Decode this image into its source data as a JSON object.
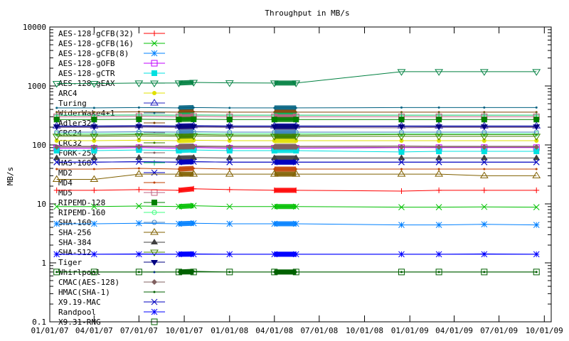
{
  "chart_data": {
    "type": "line",
    "title": "Throughput in MB/s",
    "xlabel": "",
    "ylabel": "MB/s",
    "yscale": "log",
    "ylim": [
      0.1,
      10000
    ],
    "xlim": [
      "2007-01-01",
      "2009-10-15"
    ],
    "grid": false,
    "legend_position": "top-left",
    "yticks": [
      "0.1",
      "1",
      "10",
      "100",
      "1000",
      "10000"
    ],
    "yticks_values": [
      0.1,
      1,
      10,
      100,
      1000,
      10000
    ],
    "xticks": [
      "01/01/07",
      "04/01/07",
      "07/01/07",
      "10/01/07",
      "01/01/08",
      "04/01/08",
      "07/01/08",
      "10/01/08",
      "01/01/09",
      "04/01/09",
      "07/01/09",
      "10/01/09"
    ],
    "xticks_dates": [
      "2007-01-01",
      "2007-04-01",
      "2007-07-01",
      "2007-10-01",
      "2008-01-01",
      "2008-04-01",
      "2008-07-01",
      "2008-10-01",
      "2009-01-01",
      "2009-04-01",
      "2009-07-01",
      "2009-10-01"
    ],
    "x": [
      "2007-01-15",
      "2007-04-01",
      "2007-07-01",
      "2007-09-20",
      "2007-10-20",
      "2008-01-01",
      "2008-04-01",
      "2008-05-15",
      "2008-12-15",
      "2009-03-01",
      "2009-06-01",
      "2009-09-15"
    ],
    "series": [
      {
        "name": "AES-128-gCFB(32)",
        "color": "#ff0000",
        "marker": "plus",
        "values": [
          17,
          17,
          17.5,
          17,
          18,
          17.5,
          17,
          17,
          16.5,
          17,
          17,
          17
        ]
      },
      {
        "name": "AES-128-gCFB(16)",
        "color": "#00c000",
        "marker": "cross",
        "values": [
          9,
          9,
          9.2,
          9,
          9.3,
          9,
          9,
          9,
          8.8,
          8.8,
          8.9,
          8.8
        ]
      },
      {
        "name": "AES-128-gCFB(8)",
        "color": "#0080ff",
        "marker": "star",
        "values": [
          4.6,
          4.6,
          4.7,
          4.6,
          4.7,
          4.6,
          4.6,
          4.6,
          4.4,
          4.4,
          4.5,
          4.4
        ]
      },
      {
        "name": "AES-128-gOFB",
        "color": "#c000ff",
        "marker": "box",
        "values": [
          88,
          88,
          90,
          88,
          90,
          88,
          88,
          88,
          90,
          90,
          90,
          90
        ]
      },
      {
        "name": "AES-128-gCTR",
        "color": "#00e0e0",
        "marker": "fbox",
        "values": [
          80,
          80,
          82,
          80,
          82,
          80,
          80,
          80,
          76,
          78,
          78,
          78
        ]
      },
      {
        "name": "AES-128-gEAX",
        "color": "#008040",
        "marker": "invtri",
        "values": [
          1100,
          1100,
          1120,
          1120,
          1150,
          1130,
          1120,
          1120,
          1750,
          1750,
          1750,
          1750
        ]
      },
      {
        "name": "ARC4",
        "color": "#e0e000",
        "marker": "fcircle",
        "values": [
          118,
          118,
          120,
          118,
          120,
          118,
          118,
          118,
          118,
          118,
          118,
          118
        ]
      },
      {
        "name": "Turing",
        "color": "#2020c0",
        "marker": "tri",
        "values": [
          210,
          210,
          212,
          210,
          212,
          210,
          210,
          210,
          210,
          210,
          210,
          210
        ]
      },
      {
        "name": "WiderWake4+1",
        "color": "#006080",
        "marker": "none",
        "values": [
          424,
          424,
          430,
          424,
          430,
          424,
          424,
          424,
          430,
          430,
          430,
          430
        ]
      },
      {
        "name": "Adler32",
        "color": "#804000",
        "marker": "none",
        "values": [
          360,
          360,
          365,
          360,
          365,
          360,
          360,
          360,
          360,
          360,
          360,
          360
        ]
      },
      {
        "name": "CRC24",
        "color": "#806080",
        "marker": "none",
        "values": [
          198,
          198,
          200,
          198,
          200,
          198,
          198,
          198,
          195,
          198,
          198,
          198
        ]
      },
      {
        "name": "CRC32",
        "color": "#408000",
        "marker": "none",
        "values": [
          147,
          147,
          150,
          147,
          150,
          147,
          147,
          147,
          150,
          150,
          150,
          150
        ]
      },
      {
        "name": "FORK-256",
        "color": "#806060",
        "marker": "none",
        "values": [
          95,
          95,
          96,
          95,
          96,
          95,
          95,
          95,
          96,
          95,
          95,
          95
        ]
      },
      {
        "name": "HAS-160",
        "color": "#00c060",
        "marker": "plus",
        "values": [
          320,
          320,
          322,
          320,
          322,
          320,
          320,
          320,
          320,
          320,
          320,
          320
        ]
      },
      {
        "name": "MD2",
        "color": "#0000c0",
        "marker": "cross",
        "values": [
          51,
          51,
          52,
          51,
          52,
          51,
          51,
          51,
          51,
          51,
          51,
          51
        ]
      },
      {
        "name": "MD4",
        "color": "#c04000",
        "marker": "none",
        "values": [
          39,
          39,
          40,
          39,
          40,
          39,
          39,
          39,
          39,
          39,
          39,
          39
        ]
      },
      {
        "name": "MD5",
        "color": "#c06080",
        "marker": "box",
        "values": [
          300,
          300,
          305,
          300,
          305,
          300,
          300,
          300,
          300,
          300,
          300,
          300
        ]
      },
      {
        "name": "RIPEMD-128",
        "color": "#008000",
        "marker": "fbox",
        "values": [
          270,
          270,
          272,
          270,
          272,
          270,
          270,
          270,
          270,
          270,
          270,
          270
        ]
      },
      {
        "name": "RIPEMD-160",
        "color": "#40ff80",
        "marker": "circle",
        "values": [
          155,
          155,
          157,
          155,
          157,
          155,
          155,
          155,
          155,
          155,
          155,
          155
        ]
      },
      {
        "name": "SHA-160",
        "color": "#4080c0",
        "marker": "circle",
        "values": [
          165,
          165,
          167,
          165,
          167,
          165,
          165,
          165,
          165,
          165,
          165,
          165
        ]
      },
      {
        "name": "SHA-256",
        "color": "#806000",
        "marker": "tri",
        "values": [
          26,
          26,
          32,
          32,
          32,
          32,
          32,
          32,
          32,
          32,
          30,
          30
        ]
      },
      {
        "name": "SHA-384",
        "color": "#404040",
        "marker": "ftri",
        "values": [
          60,
          60,
          61,
          60,
          61,
          60,
          60,
          60,
          60,
          60,
          60,
          60
        ]
      },
      {
        "name": "SHA-512",
        "color": "#408000",
        "marker": "invtri",
        "values": [
          140,
          140,
          142,
          140,
          142,
          140,
          140,
          140,
          140,
          140,
          140,
          140
        ]
      },
      {
        "name": "Tiger",
        "color": "#000080",
        "marker": "finvtri",
        "values": [
          205,
          205,
          207,
          205,
          207,
          205,
          205,
          205,
          205,
          205,
          205,
          205
        ]
      },
      {
        "name": "Whirlpool",
        "color": "#0000ff",
        "marker": "none",
        "values": [
          1.4,
          1.4,
          1.42,
          1.4,
          1.42,
          1.4,
          1.4,
          1.4,
          1.4,
          1.4,
          1.42,
          1.4
        ]
      },
      {
        "name": "CMAC(AES-128)",
        "color": "#806060",
        "marker": "diamond",
        "values": [
          92,
          92,
          93,
          92,
          93,
          92,
          92,
          92,
          92,
          92,
          92,
          92
        ]
      },
      {
        "name": "HMAC(SHA-1)",
        "color": "#006000",
        "marker": "none",
        "values": [
          0.7,
          0.7,
          0.7,
          0.7,
          0.72,
          0.7,
          0.7,
          0.7,
          0.7,
          0.7,
          0.7,
          0.7
        ]
      },
      {
        "name": "X9.19-MAC",
        "color": "#0000c0",
        "marker": "cross",
        "values": [
          51,
          51,
          52,
          51,
          52,
          51,
          51,
          51,
          51,
          51,
          51,
          51
        ]
      },
      {
        "name": "Randpool",
        "color": "#0000ff",
        "marker": "star",
        "values": [
          1.4,
          1.4,
          1.4,
          1.4,
          1.4,
          1.4,
          1.4,
          1.4,
          1.4,
          1.4,
          1.4,
          1.4
        ]
      },
      {
        "name": "X9.31-RNG",
        "color": "#006000",
        "marker": "box",
        "values": [
          0.7,
          0.7,
          0.7,
          0.7,
          0.7,
          0.7,
          0.7,
          0.7,
          0.7,
          0.7,
          0.7,
          0.7
        ]
      }
    ]
  }
}
